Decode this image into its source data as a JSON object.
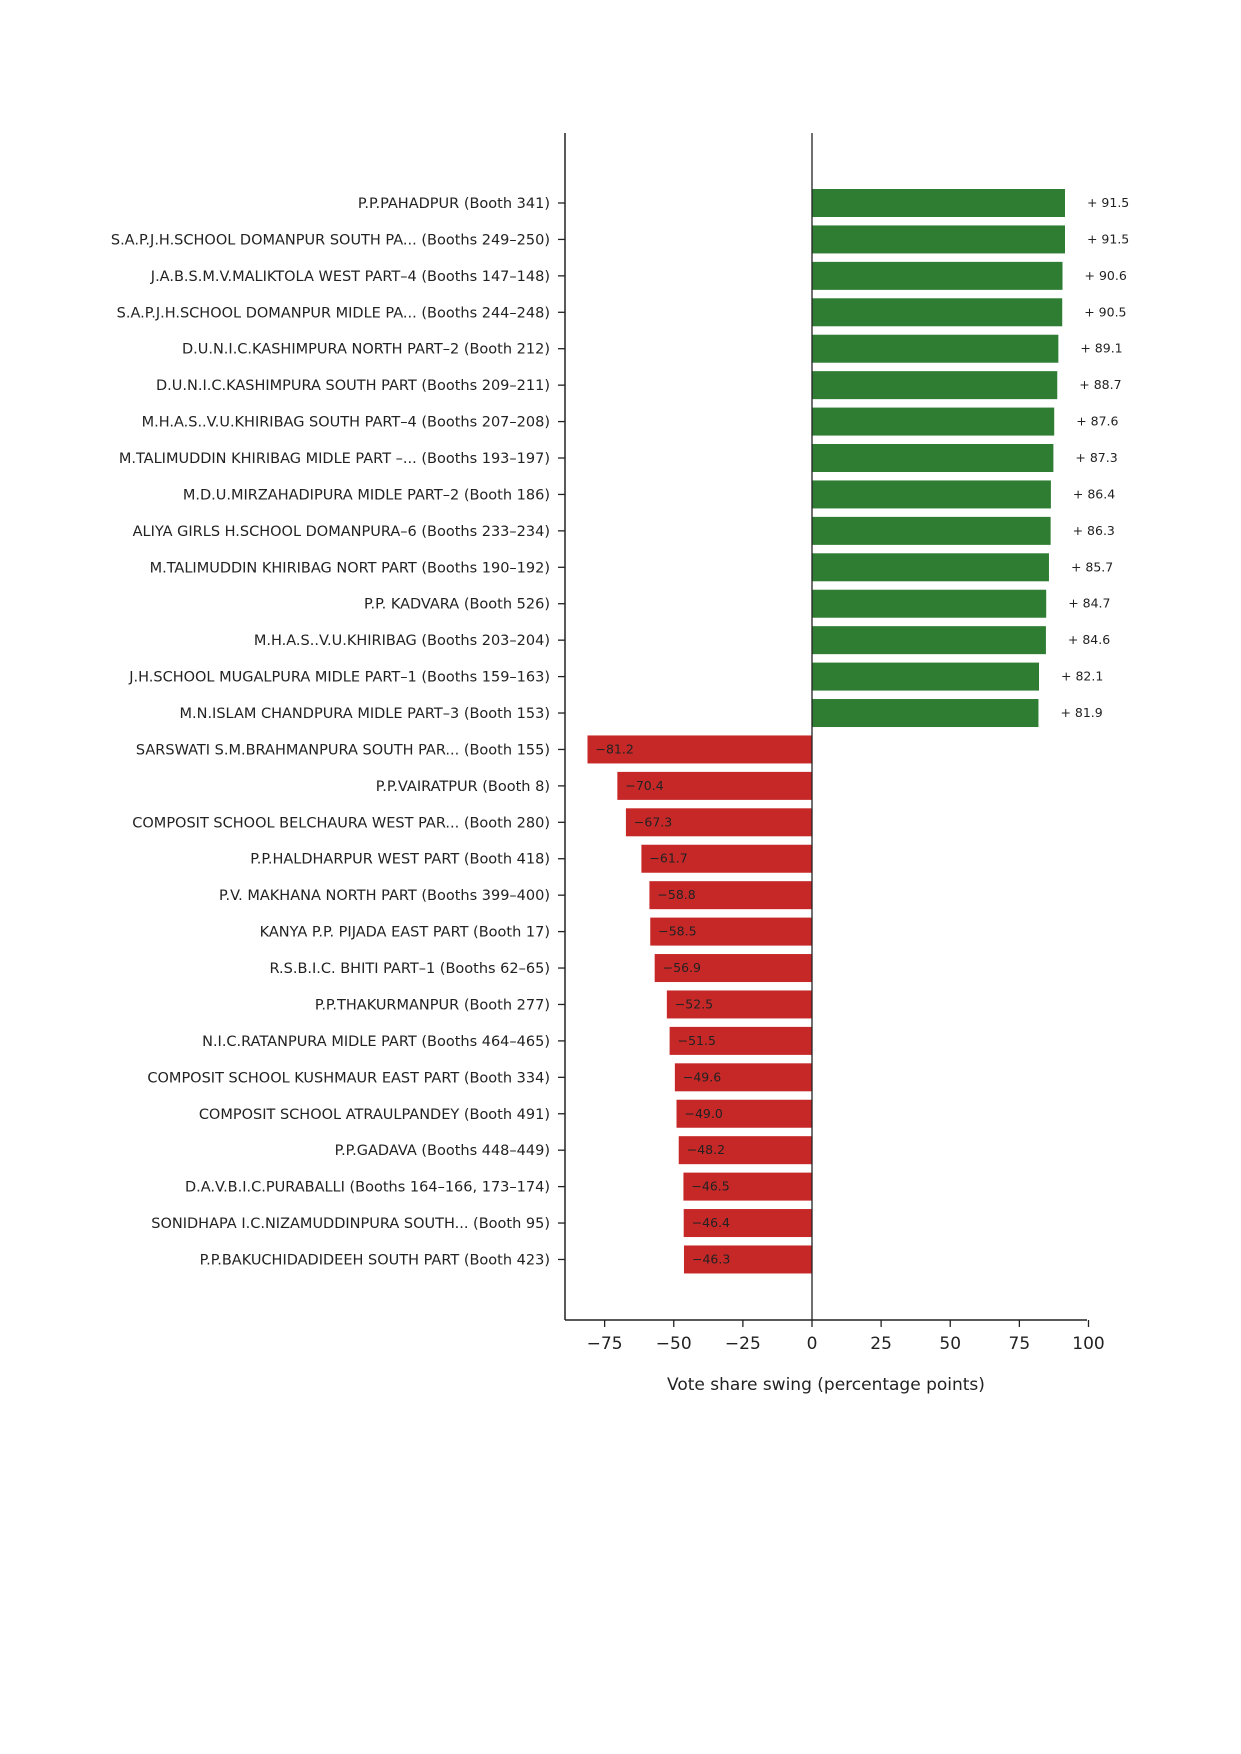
{
  "chart_data": {
    "type": "bar",
    "orientation": "horizontal",
    "xlabel": "Vote share swing (percentage points)",
    "xlim": [
      -90,
      100
    ],
    "xticks": [
      -75,
      -50,
      -25,
      0,
      25,
      50,
      75,
      100
    ],
    "xtick_labels": [
      "−75",
      "−50",
      "−25",
      "0",
      "25",
      "50",
      "75",
      "100"
    ],
    "grid": false,
    "colors": {
      "positive": "#2e7d32",
      "negative": "#c62828",
      "axis": "#222222"
    },
    "categories": [
      "P.P.PAHADPUR  (Booth 341)",
      "S.A.P.J.H.SCHOOL DOMANPUR SOUTH PA...  (Booths 249–250)",
      "J.A.B.S.M.V.MALIKTOLA WEST PART–4  (Booths 147–148)",
      "S.A.P.J.H.SCHOOL DOMANPUR MIDLE PA...  (Booths 244–248)",
      "D.U.N.I.C.KASHIMPURA NORTH PART–2  (Booth 212)",
      "D.U.N.I.C.KASHIMPURA SOUTH PART  (Booths 209–211)",
      "M.H.A.S..V.U.KHIRIBAG SOUTH PART–4  (Booths 207–208)",
      "M.TALIMUDDIN KHIRIBAG MIDLE PART –...  (Booths 193–197)",
      "M.D.U.MIRZAHADIPURA MIDLE PART–2  (Booth 186)",
      "ALIYA GIRLS H.SCHOOL DOMANPURA–6  (Booths 233–234)",
      "M.TALIMUDDIN KHIRIBAG NORT PART  (Booths 190–192)",
      "P.P. KADVARA  (Booth 526)",
      "M.H.A.S..V.U.KHIRIBAG  (Booths 203–204)",
      "J.H.SCHOOL MUGALPURA MIDLE PART–1  (Booths 159–163)",
      "M.N.ISLAM CHANDPURA MIDLE PART–3  (Booth 153)",
      "SARSWATI S.M.BRAHMANPURA SOUTH PAR...  (Booth 155)",
      "P.P.VAIRATPUR  (Booth 8)",
      "COMPOSIT SCHOOL BELCHAURA WEST PAR...  (Booth 280)",
      "P.P.HALDHARPUR WEST PART  (Booth 418)",
      "P.V. MAKHANA NORTH PART  (Booths 399–400)",
      "KANYA P.P. PIJADA EAST PART  (Booth 17)",
      "R.S.B.I.C. BHITI PART–1  (Booths 62–65)",
      "P.P.THAKURMANPUR  (Booth 277)",
      "N.I.C.RATANPURA MIDLE PART  (Booths 464–465)",
      "COMPOSIT SCHOOL KUSHMAUR EAST PART  (Booth 334)",
      "COMPOSIT SCHOOL ATRAULPANDEY  (Booth 491)",
      "P.P.GADAVA  (Booths 448–449)",
      "D.A.V.B.I.C.PURABALLI  (Booths 164–166, 173–174)",
      "SONIDHAPA I.C.NIZAMUDDINPURA SOUTH...  (Booth 95)",
      "P.P.BAKUCHIDADIDEEH SOUTH PART  (Booth 423)"
    ],
    "values": [
      91.5,
      91.5,
      90.6,
      90.5,
      89.1,
      88.7,
      87.6,
      87.3,
      86.4,
      86.3,
      85.7,
      84.7,
      84.6,
      82.1,
      81.9,
      -81.2,
      -70.4,
      -67.3,
      -61.7,
      -58.8,
      -58.5,
      -56.9,
      -52.5,
      -51.5,
      -49.6,
      -49.0,
      -48.2,
      -46.5,
      -46.4,
      -46.3
    ],
    "value_labels": [
      "+ 91.5",
      "+ 91.5",
      "+ 90.6",
      "+ 90.5",
      "+ 89.1",
      "+ 88.7",
      "+ 87.6",
      "+ 87.3",
      "+ 86.4",
      "+ 86.3",
      "+ 85.7",
      "+ 84.7",
      "+ 84.6",
      "+ 82.1",
      "+ 81.9",
      "−81.2",
      "−70.4",
      "−67.3",
      "−61.7",
      "−58.8",
      "−58.5",
      "−56.9",
      "−52.5",
      "−51.5",
      "−49.6",
      "−49.0",
      "−48.2",
      "−46.5",
      "−46.4",
      "−46.3"
    ]
  }
}
